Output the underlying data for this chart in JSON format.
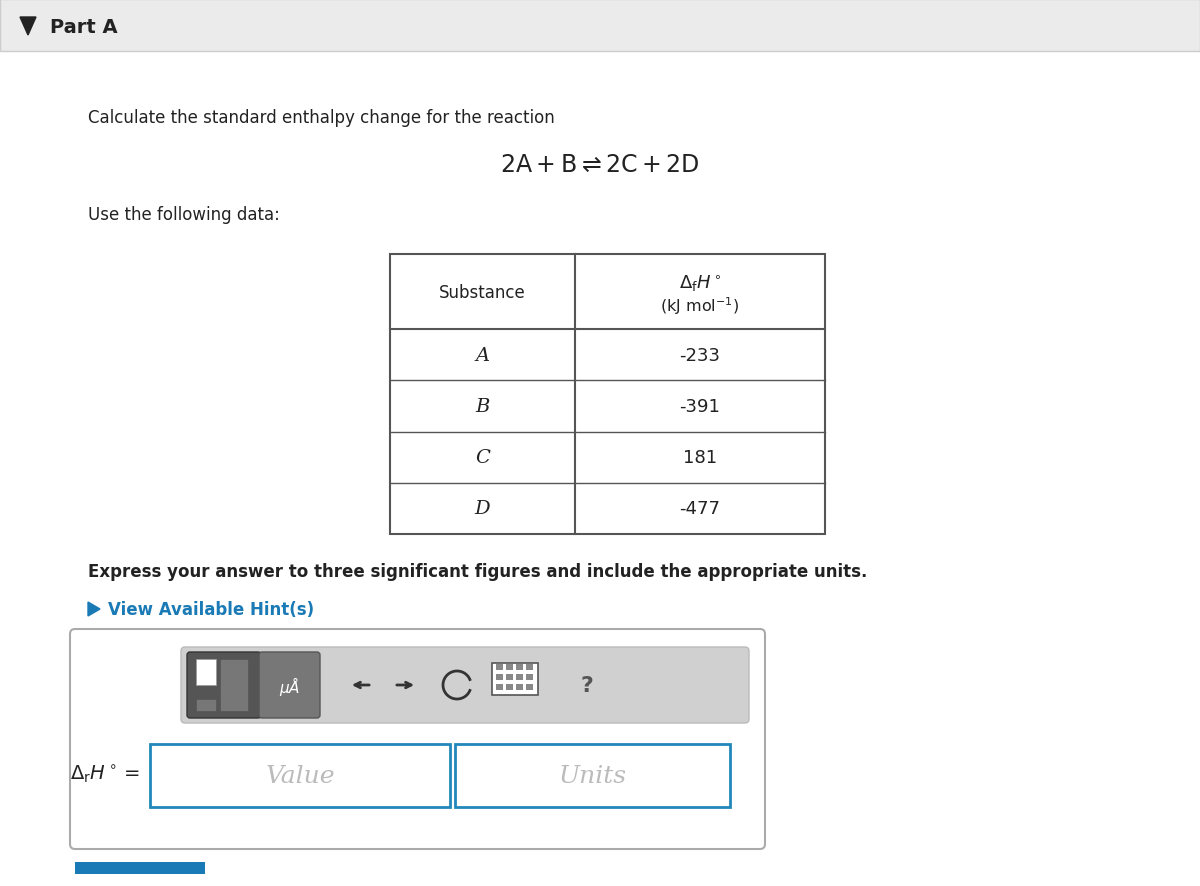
{
  "title": "Part A",
  "intro_text": "Calculate the standard enthalpy change for the reaction",
  "data_label": "Use the following data:",
  "substances": [
    "A",
    "B",
    "C",
    "D"
  ],
  "enthalpies": [
    "-233",
    "-391",
    "181",
    "-477"
  ],
  "col0_header": "Substance",
  "bold_text": "Express your answer to three significant figures and include the appropriate units.",
  "hint_text": "View Available Hint(s)",
  "value_placeholder": "Value",
  "units_placeholder": "Units",
  "bg_color": "#f7f7f7",
  "white": "#ffffff",
  "table_border": "#555555",
  "hint_color": "#1a7ab5",
  "input_border": "#2288bb",
  "part_header_bg": "#ebebeb",
  "part_header_border": "#cccccc",
  "toolbar_bg": "#d0d0d0",
  "toolbar_border": "#bbbbbb",
  "dark_btn_bg": "#666666",
  "mid_btn_bg": "#888888",
  "input_box_border": "#aaaaaa"
}
